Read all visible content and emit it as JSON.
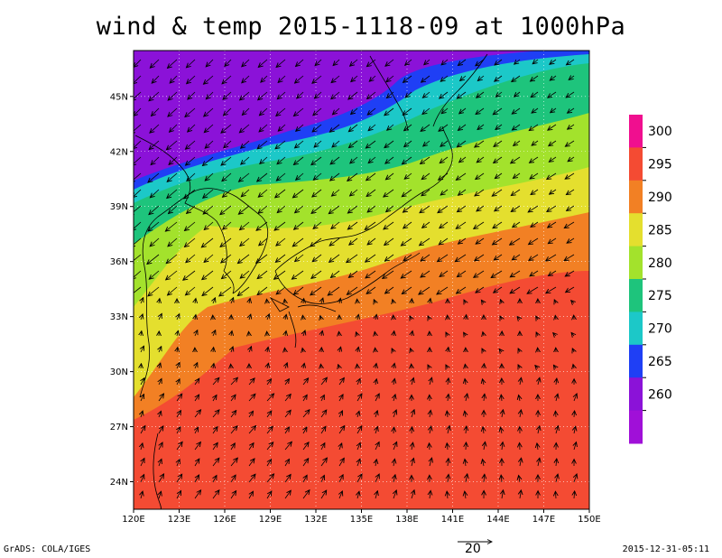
{
  "title": "wind & temp 2015-1118-09 at 1000hPa",
  "footer": {
    "left": "GrADS: COLA/IGES",
    "right": "2015-12-31-05:11"
  },
  "reference_vector": {
    "label": "20"
  },
  "map": {
    "lon_ticks": [
      "120E",
      "123E",
      "126E",
      "129E",
      "132E",
      "135E",
      "138E",
      "141E",
      "144E",
      "147E",
      "150E"
    ],
    "lat_ticks": [
      "24N",
      "27N",
      "30N",
      "33N",
      "36N",
      "39N",
      "42N",
      "45N"
    ],
    "colorbar": {
      "labels": [
        "300",
        "295",
        "290",
        "285",
        "280",
        "275",
        "270",
        "265",
        "260"
      ],
      "colors": [
        "#f00f8f",
        "#f44b33",
        "#f28024",
        "#e4df2e",
        "#a3e22c",
        "#1ec47c",
        "#1cc8c8",
        "#1f3ff5",
        "#8b12d8",
        "#a010d8"
      ]
    }
  }
}
